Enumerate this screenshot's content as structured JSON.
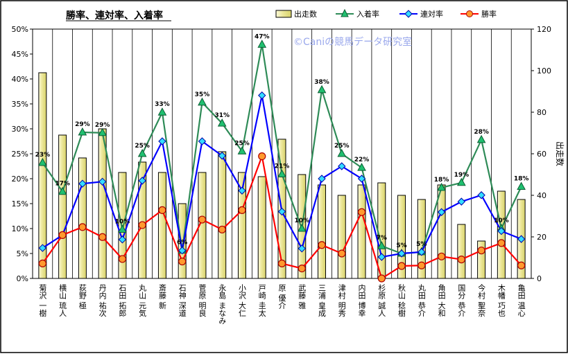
{
  "chart_data": {
    "type": "bar",
    "title": "勝率、連対率、入着率",
    "watermark": "©Caniの競馬データ研究室",
    "categories": [
      "菊沢 一樹",
      "横山 琉人",
      "荻野 極",
      "丹内 祐次",
      "石田 拓郎",
      "丸山 元気",
      "斎藤 新",
      "石神 深道",
      "菅原 明良",
      "永島 まなみ",
      "小沢 大仁",
      "戸崎 圭太",
      "原 優介",
      "武藤 雅",
      "三浦 皇成",
      "津村 明秀",
      "内田 博幸",
      "杉原 誠人",
      "秋山 稔樹",
      "丸田 恭介",
      "角田 大和",
      "国分 恭介",
      "今村 聖奈",
      "木幡 巧也",
      "亀田 温心"
    ],
    "series": [
      {
        "name": "出走数",
        "kind": "bar",
        "axis": "right",
        "color": "#e9e59b",
        "values": [
          99,
          69,
          58,
          72,
          51,
          56,
          51,
          36,
          51,
          61,
          51,
          49,
          67,
          50,
          45,
          40,
          45,
          46,
          40,
          38,
          45,
          26,
          18,
          42,
          38
        ]
      },
      {
        "name": "入着率",
        "kind": "line",
        "axis": "left",
        "color": "#2e8b57",
        "values": [
          23.2,
          17.4,
          29.3,
          29.2,
          9.8,
          25.0,
          33.3,
          5.6,
          35.3,
          31.1,
          25.5,
          46.9,
          20.9,
          10.0,
          37.8,
          25.0,
          22.2,
          6.5,
          5.0,
          5.3,
          18.2,
          19.2,
          27.8,
          10.0,
          18.4
        ]
      },
      {
        "name": "連対率",
        "kind": "line",
        "axis": "left",
        "color": "#0000ff",
        "values": [
          6.1,
          8.7,
          19.0,
          19.4,
          7.8,
          19.6,
          27.5,
          5.6,
          27.5,
          24.6,
          17.6,
          36.7,
          13.4,
          6.0,
          20.0,
          22.5,
          20.0,
          4.3,
          5.0,
          5.3,
          13.3,
          15.4,
          16.7,
          9.5,
          7.9
        ]
      },
      {
        "name": "勝率",
        "kind": "line",
        "axis": "left",
        "color": "#ff0000",
        "values": [
          3.0,
          8.7,
          10.3,
          8.3,
          3.9,
          10.7,
          13.7,
          3.4,
          11.8,
          9.8,
          13.7,
          24.5,
          3.0,
          2.0,
          6.7,
          5.0,
          13.3,
          0.0,
          2.5,
          2.6,
          4.4,
          3.8,
          5.6,
          7.1,
          2.6
        ]
      }
    ],
    "annotations": [
      {
        "series": "入着率",
        "index": 0,
        "text": "23%"
      },
      {
        "series": "入着率",
        "index": 1,
        "text": "17%"
      },
      {
        "series": "入着率",
        "index": 2,
        "text": "29%"
      },
      {
        "series": "入着率",
        "index": 3,
        "text": "29%"
      },
      {
        "series": "入着率",
        "index": 4,
        "text": "10%"
      },
      {
        "series": "入着率",
        "index": 5,
        "text": "25%"
      },
      {
        "series": "入着率",
        "index": 6,
        "text": "33%"
      },
      {
        "series": "入着率",
        "index": 7,
        "text": "6%"
      },
      {
        "series": "入着率",
        "index": 8,
        "text": "35%"
      },
      {
        "series": "入着率",
        "index": 9,
        "text": "31%"
      },
      {
        "series": "入着率",
        "index": 10,
        "text": "25%"
      },
      {
        "series": "入着率",
        "index": 11,
        "text": "47%"
      },
      {
        "series": "入着率",
        "index": 12,
        "text": "21%"
      },
      {
        "series": "入着率",
        "index": 13,
        "text": "10%"
      },
      {
        "series": "入着率",
        "index": 14,
        "text": "38%"
      },
      {
        "series": "入着率",
        "index": 15,
        "text": "25%"
      },
      {
        "series": "入着率",
        "index": 16,
        "text": "22%"
      },
      {
        "series": "入着率",
        "index": 17,
        "text": "7%"
      },
      {
        "series": "入着率",
        "index": 18,
        "text": "5%"
      },
      {
        "series": "入着率",
        "index": 19,
        "text": "5%"
      },
      {
        "series": "入着率",
        "index": 20,
        "text": "18%"
      },
      {
        "series": "入着率",
        "index": 21,
        "text": "19%"
      },
      {
        "series": "入着率",
        "index": 22,
        "text": "28%"
      },
      {
        "series": "入着率",
        "index": 23,
        "text": "10%"
      },
      {
        "series": "入着率",
        "index": 24,
        "text": "18%"
      }
    ],
    "y_left": {
      "min": 0,
      "max": 50,
      "step": 5,
      "ticks": [
        "0%",
        "5%",
        "10%",
        "15%",
        "20%",
        "25%",
        "30%",
        "35%",
        "40%",
        "45%",
        "50%"
      ]
    },
    "y_right": {
      "label": "出走数",
      "min": 0,
      "max": 120,
      "step": 20,
      "ticks": [
        "0",
        "20",
        "40",
        "60",
        "80",
        "100",
        "120"
      ]
    },
    "grid": "vertical",
    "legend_position": "top"
  }
}
